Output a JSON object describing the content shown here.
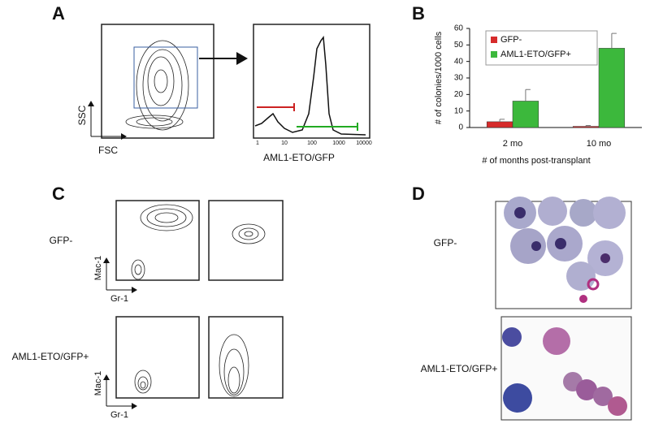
{
  "panel_a": {
    "label": "A",
    "y_axis": "SSC",
    "x_axis": "FSC",
    "histogram_x_label": "AML1-ETO/GFP",
    "histogram_ticks": [
      "1",
      "10",
      "100",
      "1000",
      "10000"
    ]
  },
  "chart_data": {
    "type": "bar",
    "label": "B",
    "y_label": "# of colonies/1000 cells",
    "x_label": "# of months post-transplant",
    "categories": [
      "2 mo",
      "10 mo"
    ],
    "series": [
      {
        "name": "GFP-",
        "color": "#d62b2b",
        "values": [
          3.5,
          0.7
        ],
        "errors": [
          1.5,
          0.5
        ]
      },
      {
        "name": "AML1-ETO/GFP+",
        "color": "#3cb83c",
        "values": [
          16,
          48
        ],
        "errors": [
          7,
          9
        ]
      }
    ],
    "ylim": [
      0,
      60
    ],
    "yticks": [
      0,
      10,
      20,
      30,
      40,
      50,
      60
    ],
    "legend": "top-left"
  },
  "panel_c": {
    "label": "C",
    "rows": [
      "GFP-",
      "AML1-ETO/GFP+"
    ],
    "y_axis": "Mac-1",
    "x_axis": "Gr-1"
  },
  "panel_d": {
    "label": "D",
    "rows": [
      "GFP-",
      "AML1-ETO/GFP+"
    ]
  }
}
